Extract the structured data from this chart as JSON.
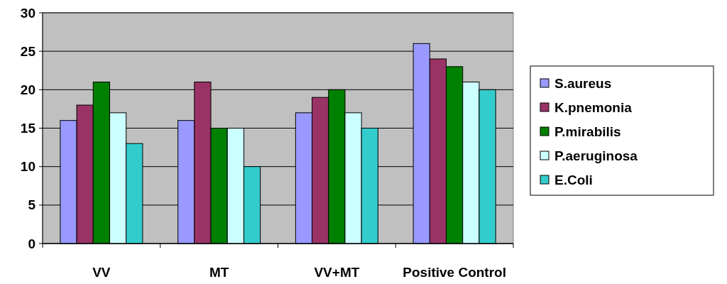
{
  "chart_data": {
    "type": "bar",
    "categories": [
      "VV",
      "MT",
      "VV+MT",
      "Positive Control"
    ],
    "series": [
      {
        "name": "S.aureus",
        "color": "#9999ff",
        "values": [
          16,
          16,
          17,
          26
        ]
      },
      {
        "name": "K.pnemonia",
        "color": "#993366",
        "values": [
          18,
          21,
          19,
          24
        ]
      },
      {
        "name": "P.mirabilis",
        "color": "#008000",
        "values": [
          21,
          15,
          20,
          23
        ]
      },
      {
        "name": "P.aeruginosa",
        "color": "#ccffff",
        "values": [
          17,
          15,
          17,
          21
        ]
      },
      {
        "name": "E.Coli",
        "color": "#33cccc",
        "values": [
          13,
          10,
          15,
          20
        ]
      }
    ],
    "ylim": [
      0,
      30
    ],
    "yticks": [
      0,
      5,
      10,
      15,
      20,
      25,
      30
    ],
    "grid": "y",
    "legend": "right"
  }
}
